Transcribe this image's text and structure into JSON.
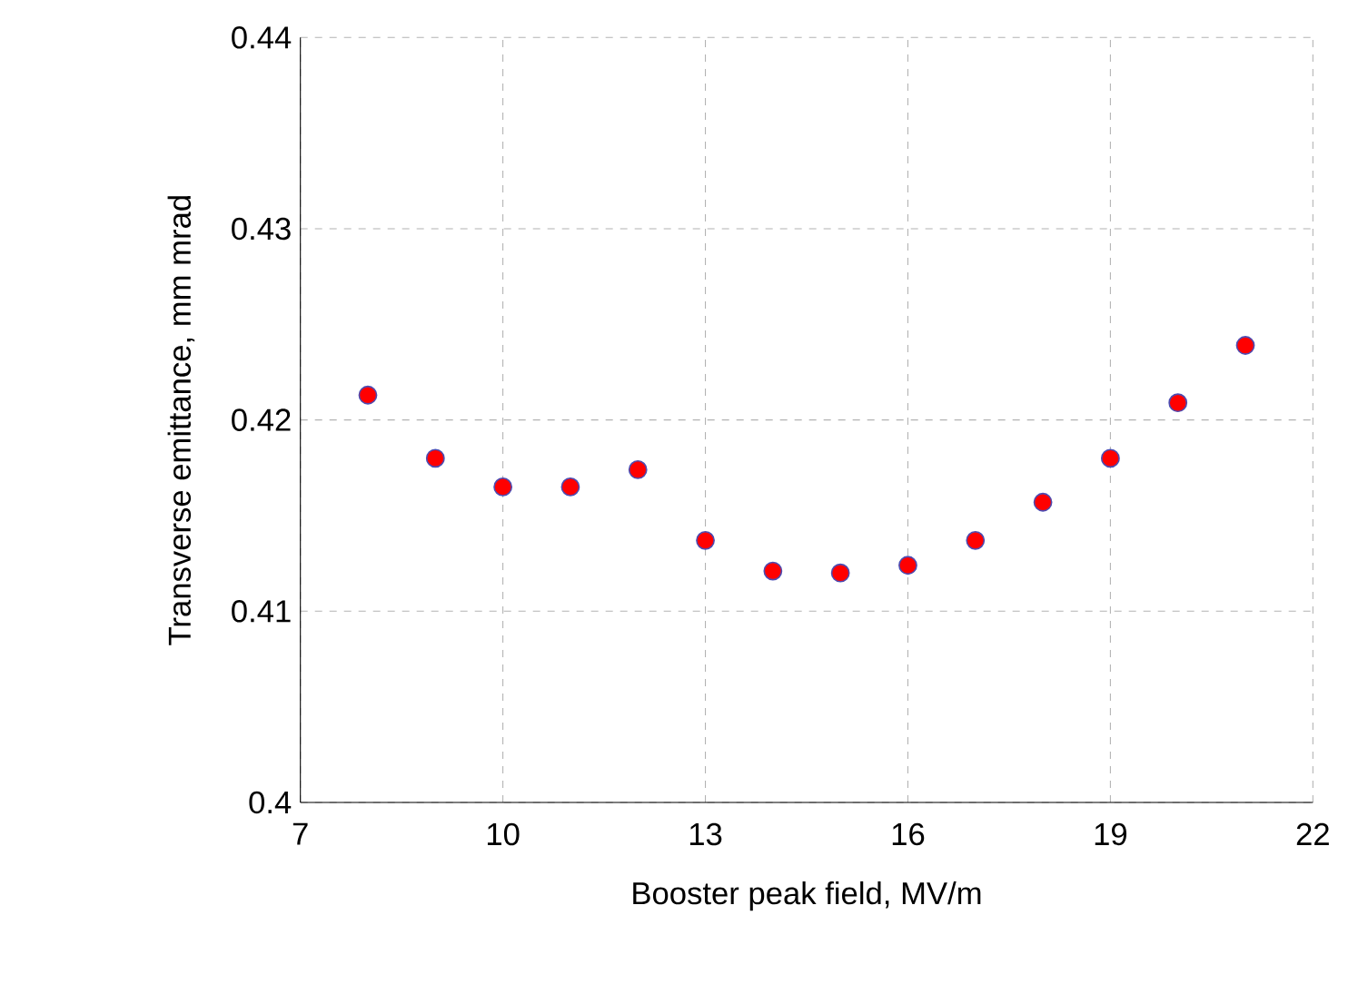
{
  "chart_data": {
    "type": "scatter",
    "xlabel": "Booster peak field, MV/m",
    "ylabel": "Transverse emittance, mm mrad",
    "x": [
      8,
      9,
      10,
      11,
      12,
      13,
      14,
      15,
      16,
      17,
      18,
      19,
      20,
      21
    ],
    "series": [
      {
        "color": "#ff0000",
        "values": [
          0.4213,
          0.418,
          0.4165,
          0.4165,
          0.4174,
          0.4137,
          0.4121,
          0.412,
          0.4124,
          0.4137,
          0.4157,
          0.418,
          0.4209,
          0.4239
        ]
      }
    ],
    "xlim": [
      7,
      22
    ],
    "xticks": [
      7,
      10,
      13,
      16,
      19,
      22
    ],
    "ylim": [
      0.4,
      0.44
    ],
    "yticks": [
      0.4,
      0.41,
      0.42,
      0.43,
      0.44
    ],
    "grid": true,
    "marker": "circle"
  }
}
